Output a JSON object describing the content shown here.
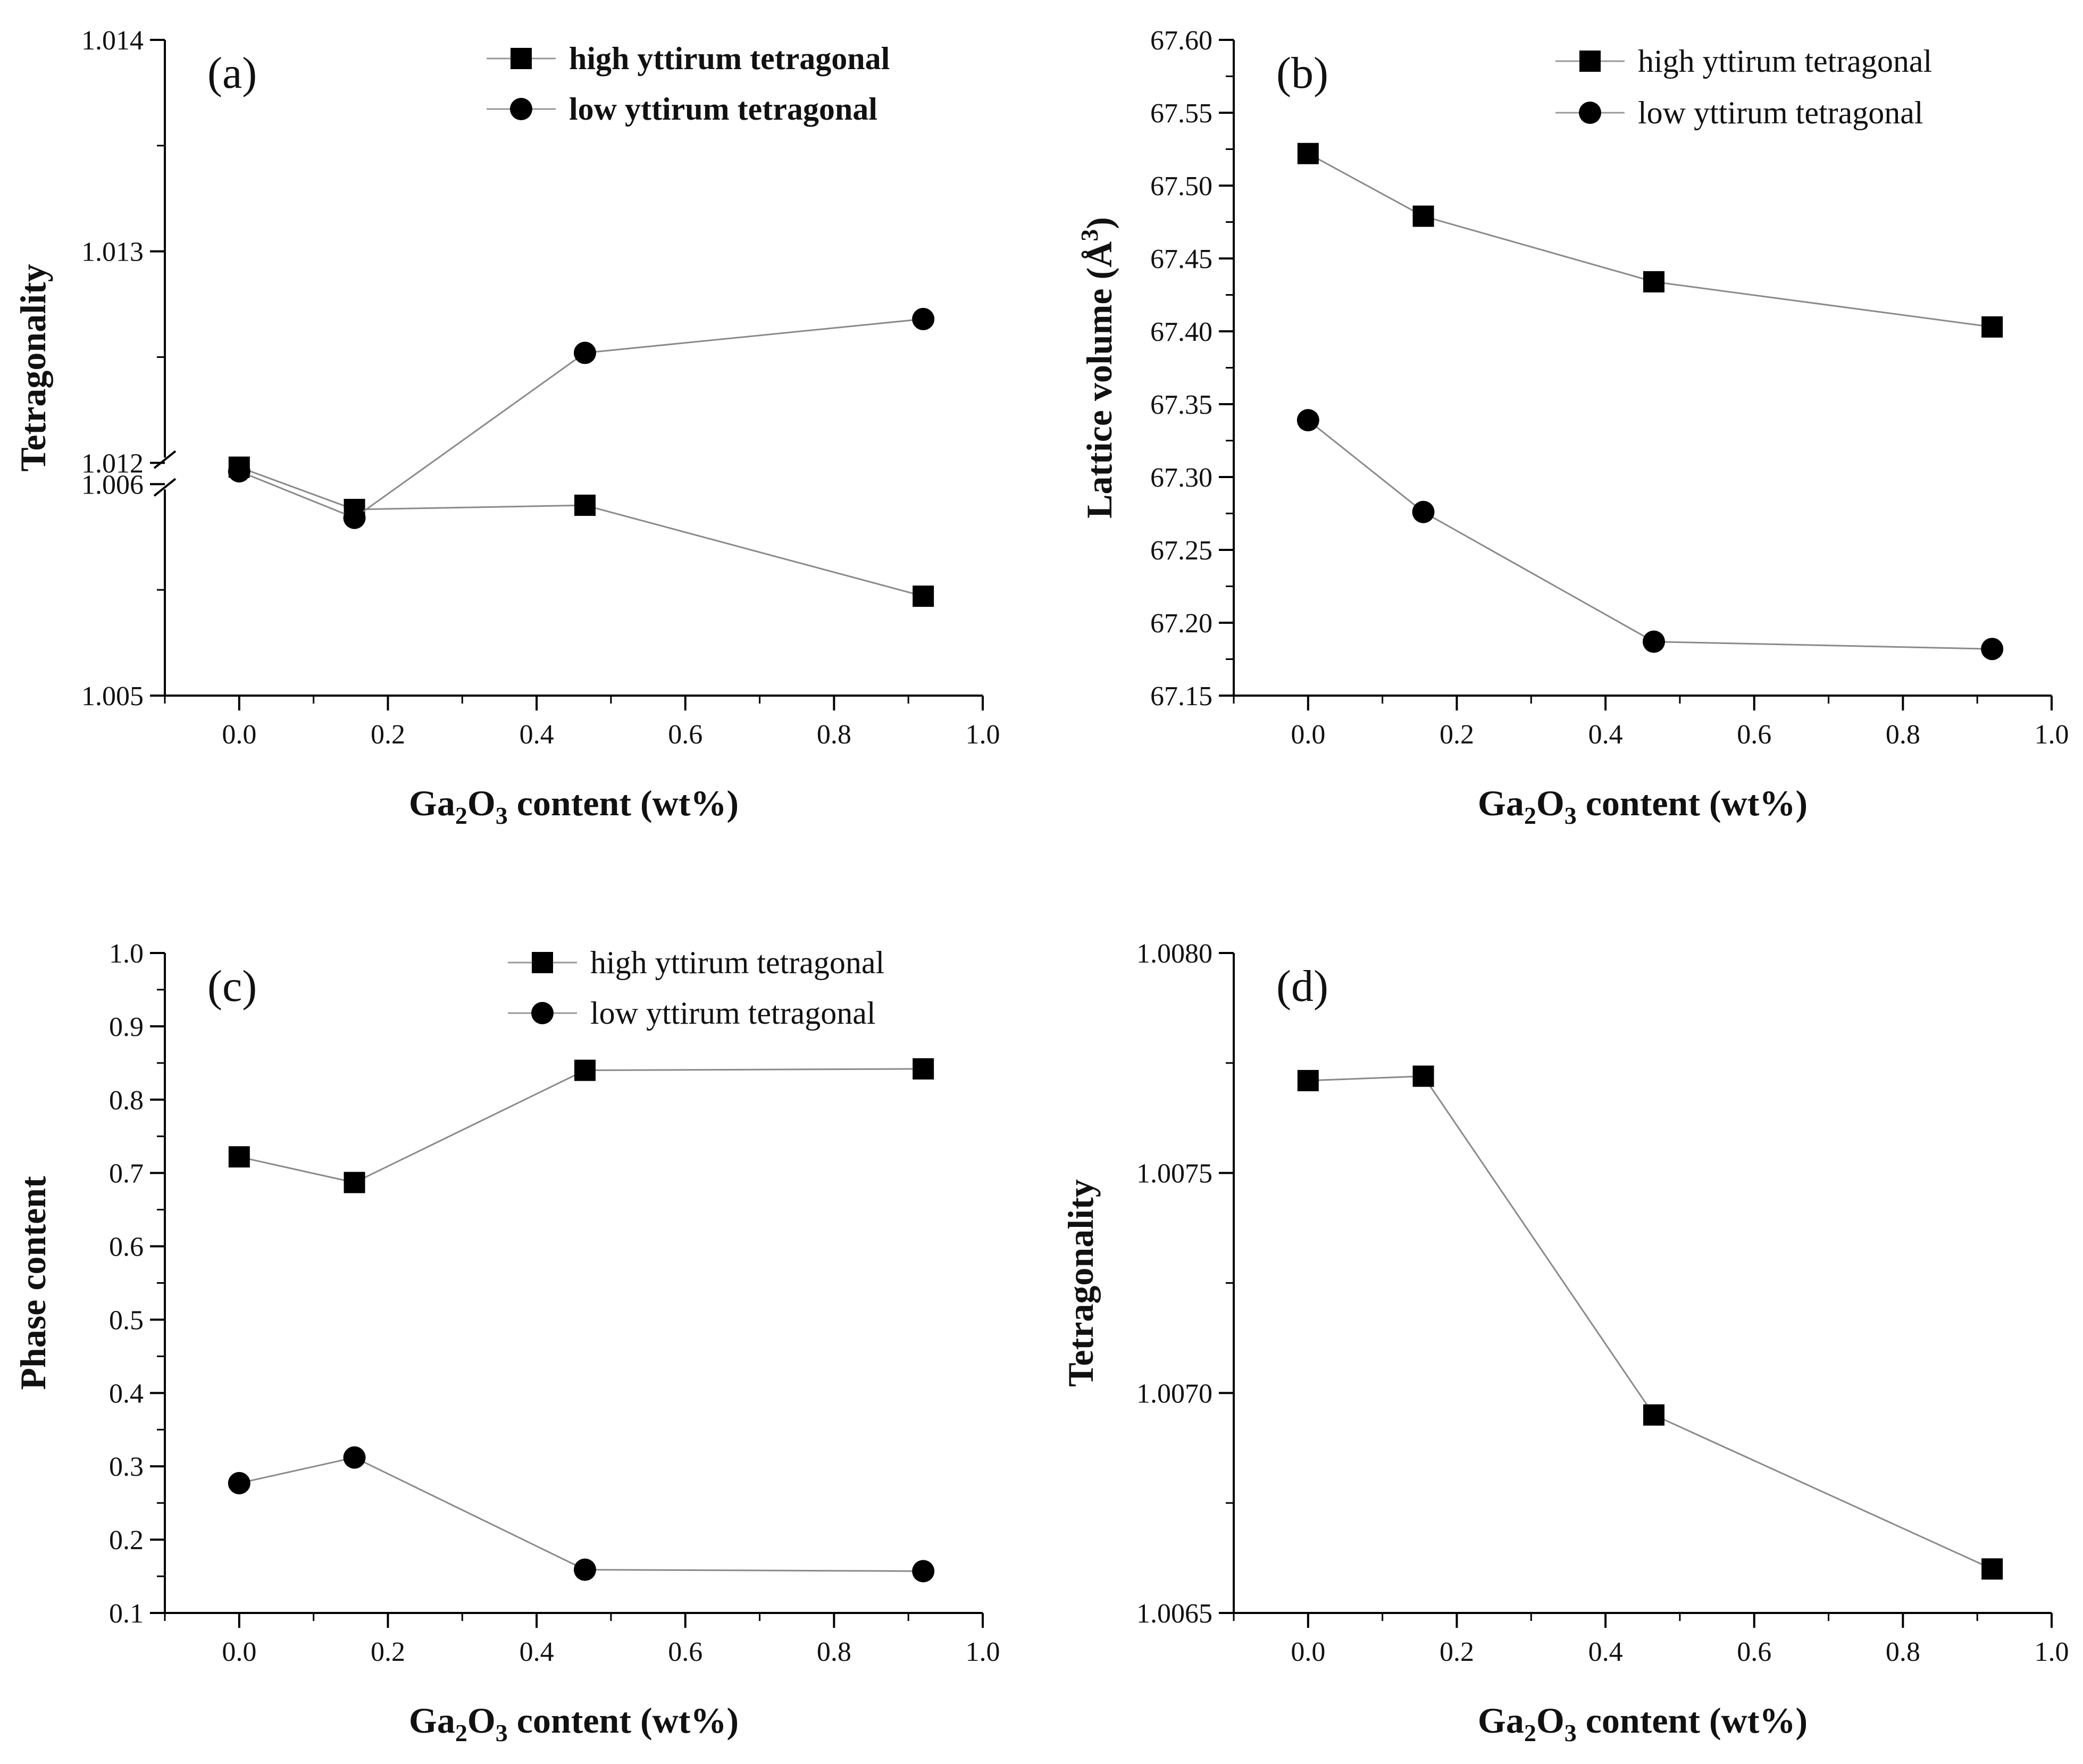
{
  "chart_data": [
    {
      "type": "line",
      "panel_label": "(a)",
      "xlabel": "Ga2O3 content (wt%)",
      "ylabel": "Tetragonality",
      "xlim": [
        -0.1,
        1.0
      ],
      "xticks": [
        "0.0",
        "0.2",
        "0.4",
        "0.6",
        "0.8",
        "1.0"
      ],
      "broken_axis": true,
      "ylim_lower": [
        1.005,
        1.006
      ],
      "ylim_upper": [
        1.012,
        1.014
      ],
      "yticks": [
        "1.005",
        "1.006",
        "1.012",
        "1.013",
        "1.014"
      ],
      "legend_position": "top-right",
      "series": [
        {
          "name": "high yttirum tetragonal",
          "marker": "square",
          "x": [
            0,
            0.155,
            0.465,
            0.92
          ],
          "y": [
            1.00608,
            1.00588,
            1.0059,
            1.00547
          ]
        },
        {
          "name": "low yttirum tetragonal",
          "marker": "circle",
          "x": [
            0,
            0.155,
            0.465,
            0.92
          ],
          "y": [
            1.01196,
            1.01174,
            1.01252,
            1.01268
          ]
        }
      ]
    },
    {
      "type": "line",
      "panel_label": "(b)",
      "xlabel": "Ga2O3 content (wt%)",
      "ylabel": "Lattice volume (Å3)",
      "xlim": [
        -0.1,
        1.0
      ],
      "ylim": [
        67.15,
        67.6
      ],
      "xticks": [
        "0.0",
        "0.2",
        "0.4",
        "0.6",
        "0.8",
        "1.0"
      ],
      "yticks": [
        "67.15",
        "67.20",
        "67.25",
        "67.30",
        "67.35",
        "67.40",
        "67.45",
        "67.50",
        "67.55",
        "67.60"
      ],
      "legend_position": "top-right",
      "series": [
        {
          "name": "high yttirum tetragonal",
          "marker": "square",
          "x": [
            0,
            0.155,
            0.465,
            0.92
          ],
          "y": [
            67.522,
            67.479,
            67.434,
            67.403
          ]
        },
        {
          "name": "low yttirum tetragonal",
          "marker": "circle",
          "x": [
            0,
            0.155,
            0.465,
            0.92
          ],
          "y": [
            67.339,
            67.276,
            67.187,
            67.182
          ]
        }
      ]
    },
    {
      "type": "line",
      "panel_label": "(c)",
      "xlabel": "Ga2O3 content (wt%)",
      "ylabel": "Phase content",
      "xlim": [
        -0.1,
        1.0
      ],
      "ylim": [
        0.1,
        1.0
      ],
      "xticks": [
        "0.0",
        "0.2",
        "0.4",
        "0.6",
        "0.8",
        "1.0"
      ],
      "yticks": [
        "0.1",
        "0.2",
        "0.3",
        "0.4",
        "0.5",
        "0.6",
        "0.7",
        "0.8",
        "0.9",
        "1.0"
      ],
      "legend_position": "top-right",
      "series": [
        {
          "name": "high yttirum tetragonal",
          "marker": "square",
          "x": [
            0,
            0.155,
            0.465,
            0.92
          ],
          "y": [
            0.722,
            0.687,
            0.84,
            0.842
          ]
        },
        {
          "name": "low yttirum tetragonal",
          "marker": "circle",
          "x": [
            0,
            0.155,
            0.465,
            0.92
          ],
          "y": [
            0.277,
            0.312,
            0.159,
            0.157
          ]
        }
      ]
    },
    {
      "type": "line",
      "panel_label": "(d)",
      "xlabel": "Ga2O3 content (wt%)",
      "ylabel": "Tetragonality",
      "xlim": [
        -0.1,
        1.0
      ],
      "ylim": [
        1.0065,
        1.008
      ],
      "xticks": [
        "0.0",
        "0.2",
        "0.4",
        "0.6",
        "0.8",
        "1.0"
      ],
      "yticks": [
        "1.0065",
        "1.0070",
        "1.0075",
        "1.0080"
      ],
      "series": [
        {
          "name": "",
          "marker": "square",
          "x": [
            0,
            0.155,
            0.465,
            0.92
          ],
          "y": [
            1.00771,
            1.00772,
            1.00695,
            1.0066
          ]
        }
      ]
    }
  ]
}
